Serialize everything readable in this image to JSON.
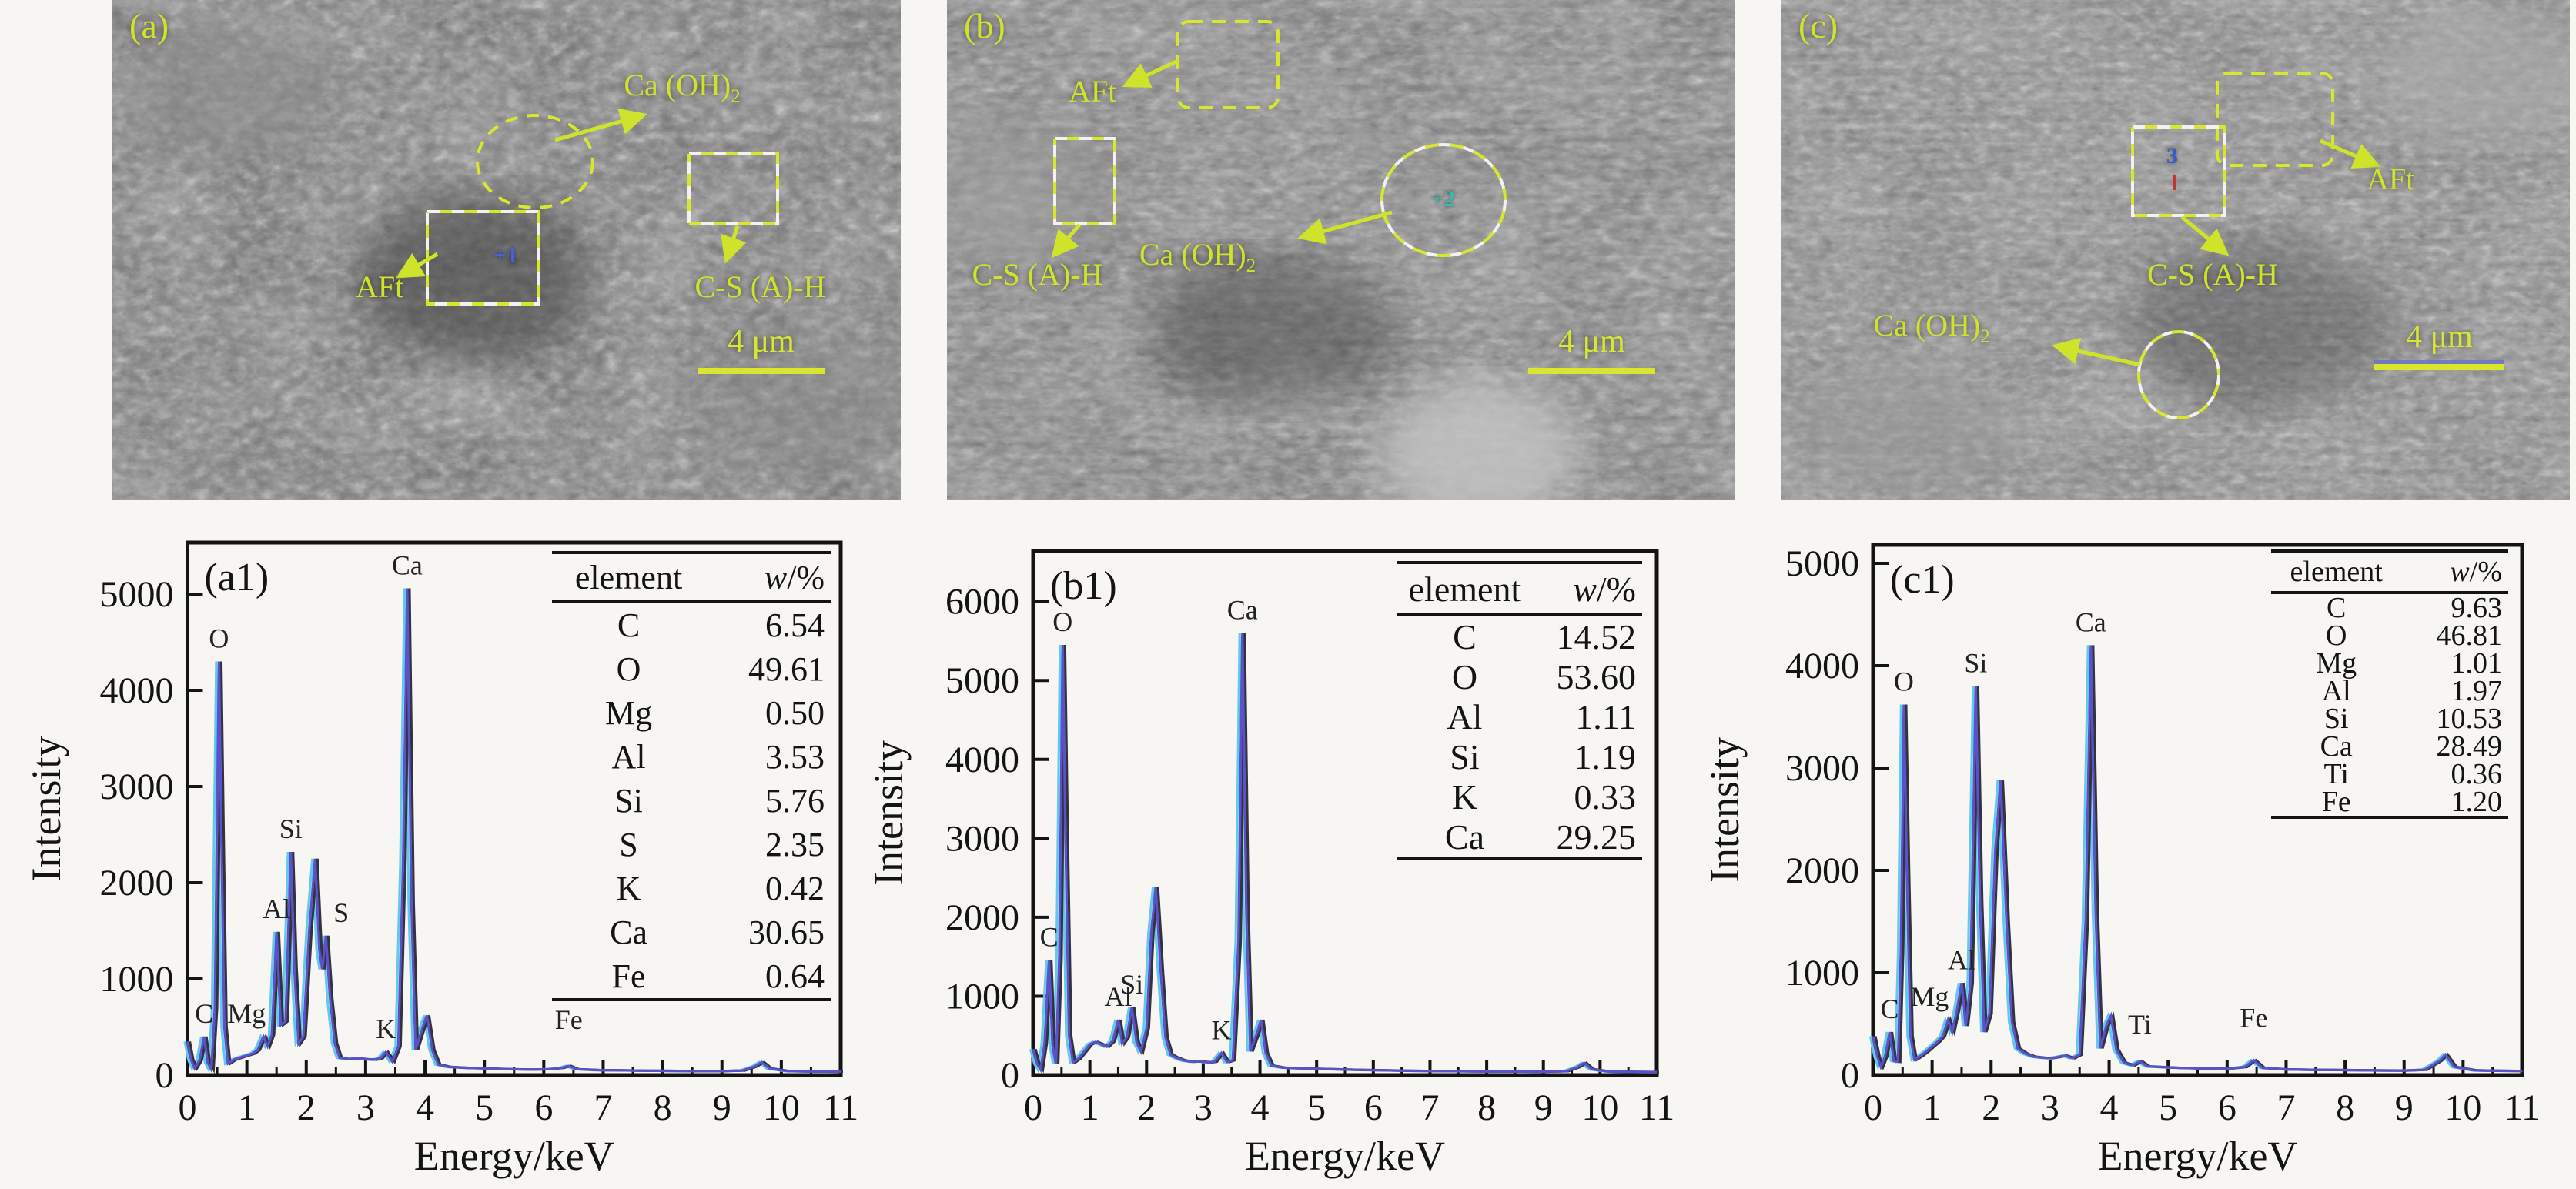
{
  "colors": {
    "annotation": "#cfe32b",
    "dash_yellow": "#d8e62e",
    "dash_white": "#f2f2f2",
    "marker_plus1": "#4b5fd6",
    "marker_plus2": "#37b9ae",
    "marker_3": "#3a57cc",
    "curve_dark": "#33333d",
    "curve_blue": "#5a52c8",
    "curve_cyan": "#63c8ec",
    "axis": "#141414",
    "sem_background": "#6e6e6e"
  },
  "sem_panels": [
    {
      "id": "a",
      "label": "(a)",
      "mineral_caoh": "Ca (OH)",
      "caoh_sub": "2",
      "mineral_aft": "AFt",
      "mineral_csah": "C-S (A)-H",
      "marker": "+1",
      "scale_label": "4 μm"
    },
    {
      "id": "b",
      "label": "(b)",
      "mineral_caoh": "Ca (OH)",
      "caoh_sub": "2",
      "mineral_aft": "AFt",
      "mineral_csah": "C-S (A)-H",
      "marker": "+2",
      "scale_label": "4 μm"
    },
    {
      "id": "c",
      "label": "(c)",
      "mineral_caoh": "Ca (OH)",
      "caoh_sub": "2",
      "mineral_aft": "AFt",
      "mineral_csah": "C-S (A)-H",
      "marker": "3",
      "scale_label": "4 μm"
    }
  ],
  "chart_data": [
    {
      "id": "a1",
      "type": "line",
      "panel_label": "(a1)",
      "xlabel": "Energy/keV",
      "ylabel": "Intensity",
      "xlim": [
        0,
        11
      ],
      "ylim": [
        0,
        5536
      ],
      "xticks": [
        0,
        1,
        2,
        3,
        4,
        5,
        6,
        7,
        8,
        9,
        10,
        11
      ],
      "yticks": [
        0,
        1000,
        2000,
        3000,
        4000,
        5000
      ],
      "grid": false,
      "legend_position": null,
      "peaks": [
        {
          "element": "C",
          "x": 0.28,
          "y": 400
        },
        {
          "element": "O",
          "x": 0.53,
          "y": 4300
        },
        {
          "element": "Mg",
          "x": 1.28,
          "y": 400,
          "dx": -22
        },
        {
          "element": "Al",
          "x": 1.5,
          "y": 1490
        },
        {
          "element": "Si",
          "x": 1.74,
          "y": 2320
        },
        {
          "element": "S",
          "x": 2.33,
          "y": 1450,
          "dx": 20
        },
        {
          "element": "K",
          "x": 3.34,
          "y": 240
        },
        {
          "element": "Ca",
          "x": 3.7,
          "y": 5060
        },
        {
          "element": "Fe",
          "x": 6.42,
          "y": 95,
          "dy": -30
        }
      ],
      "curve": [
        [
          0,
          350
        ],
        [
          0.06,
          160
        ],
        [
          0.12,
          70
        ],
        [
          0.2,
          150
        ],
        [
          0.28,
          400
        ],
        [
          0.34,
          130
        ],
        [
          0.4,
          60
        ],
        [
          0.46,
          700
        ],
        [
          0.5,
          2800
        ],
        [
          0.53,
          4300
        ],
        [
          0.57,
          2500
        ],
        [
          0.62,
          500
        ],
        [
          0.68,
          120
        ],
        [
          0.78,
          160
        ],
        [
          0.9,
          185
        ],
        [
          1.0,
          205
        ],
        [
          1.1,
          225
        ],
        [
          1.18,
          260
        ],
        [
          1.28,
          400
        ],
        [
          1.35,
          300
        ],
        [
          1.42,
          420
        ],
        [
          1.5,
          1490
        ],
        [
          1.57,
          520
        ],
        [
          1.65,
          560
        ],
        [
          1.74,
          2320
        ],
        [
          1.8,
          1100
        ],
        [
          1.87,
          330
        ],
        [
          1.95,
          400
        ],
        [
          2.05,
          1500
        ],
        [
          2.15,
          2250
        ],
        [
          2.22,
          1300
        ],
        [
          2.27,
          1100
        ],
        [
          2.33,
          1450
        ],
        [
          2.4,
          800
        ],
        [
          2.48,
          330
        ],
        [
          2.56,
          180
        ],
        [
          2.7,
          165
        ],
        [
          2.85,
          175
        ],
        [
          3.0,
          165
        ],
        [
          3.15,
          160
        ],
        [
          3.25,
          175
        ],
        [
          3.34,
          240
        ],
        [
          3.45,
          140
        ],
        [
          3.55,
          300
        ],
        [
          3.63,
          2200
        ],
        [
          3.7,
          5060
        ],
        [
          3.77,
          1800
        ],
        [
          3.84,
          260
        ],
        [
          3.95,
          480
        ],
        [
          4.03,
          620
        ],
        [
          4.12,
          260
        ],
        [
          4.22,
          110
        ],
        [
          4.4,
          85
        ],
        [
          4.7,
          75
        ],
        [
          5.0,
          70
        ],
        [
          5.4,
          62
        ],
        [
          5.8,
          58
        ],
        [
          6.1,
          62
        ],
        [
          6.3,
          75
        ],
        [
          6.42,
          95
        ],
        [
          6.55,
          62
        ],
        [
          6.9,
          52
        ],
        [
          7.3,
          50
        ],
        [
          7.7,
          46
        ],
        [
          8.1,
          44
        ],
        [
          8.5,
          42
        ],
        [
          9.0,
          42
        ],
        [
          9.35,
          48
        ],
        [
          9.55,
          90
        ],
        [
          9.67,
          135
        ],
        [
          9.8,
          70
        ],
        [
          10.1,
          42
        ],
        [
          10.5,
          38
        ],
        [
          11,
          36
        ]
      ],
      "table": {
        "header_element": "element",
        "header_w": "w/%",
        "rows": [
          [
            "C",
            "6.54"
          ],
          [
            "O",
            "49.61"
          ],
          [
            "Mg",
            "0.50"
          ],
          [
            "Al",
            "3.53"
          ],
          [
            "Si",
            "5.76"
          ],
          [
            "S",
            "2.35"
          ],
          [
            "K",
            "0.42"
          ],
          [
            "Ca",
            "30.65"
          ],
          [
            "Fe",
            "0.64"
          ]
        ]
      }
    },
    {
      "id": "b1",
      "type": "line",
      "panel_label": "(b1)",
      "xlabel": "Energy/keV",
      "ylabel": "Intensity",
      "xlim": [
        0,
        11
      ],
      "ylim": [
        0,
        6640
      ],
      "xticks": [
        0,
        1,
        2,
        3,
        4,
        5,
        6,
        7,
        8,
        9,
        10,
        11
      ],
      "yticks": [
        0,
        1000,
        2000,
        3000,
        4000,
        5000,
        6000
      ],
      "grid": false,
      "legend_position": null,
      "peaks": [
        {
          "element": "C",
          "x": 0.28,
          "y": 1460
        },
        {
          "element": "O",
          "x": 0.52,
          "y": 5450
        },
        {
          "element": "Al",
          "x": 1.5,
          "y": 700
        },
        {
          "element": "Si",
          "x": 1.74,
          "y": 860
        },
        {
          "element": "K",
          "x": 3.32,
          "y": 280
        },
        {
          "element": "Ca",
          "x": 3.69,
          "y": 5600
        }
      ],
      "curve": [
        [
          0,
          330
        ],
        [
          0.07,
          140
        ],
        [
          0.13,
          70
        ],
        [
          0.2,
          400
        ],
        [
          0.28,
          1460
        ],
        [
          0.34,
          380
        ],
        [
          0.4,
          140
        ],
        [
          0.46,
          1500
        ],
        [
          0.52,
          5450
        ],
        [
          0.57,
          3000
        ],
        [
          0.63,
          500
        ],
        [
          0.7,
          160
        ],
        [
          0.8,
          210
        ],
        [
          0.9,
          300
        ],
        [
          1.0,
          390
        ],
        [
          1.1,
          420
        ],
        [
          1.2,
          390
        ],
        [
          1.3,
          360
        ],
        [
          1.4,
          430
        ],
        [
          1.5,
          700
        ],
        [
          1.57,
          400
        ],
        [
          1.65,
          480
        ],
        [
          1.74,
          860
        ],
        [
          1.82,
          420
        ],
        [
          1.9,
          300
        ],
        [
          2.0,
          600
        ],
        [
          2.08,
          1800
        ],
        [
          2.16,
          2380
        ],
        [
          2.25,
          1300
        ],
        [
          2.33,
          480
        ],
        [
          2.42,
          260
        ],
        [
          2.52,
          220
        ],
        [
          2.65,
          185
        ],
        [
          2.8,
          170
        ],
        [
          2.95,
          175
        ],
        [
          3.1,
          160
        ],
        [
          3.2,
          170
        ],
        [
          3.32,
          280
        ],
        [
          3.42,
          165
        ],
        [
          3.52,
          190
        ],
        [
          3.62,
          1700
        ],
        [
          3.69,
          5600
        ],
        [
          3.76,
          2000
        ],
        [
          3.83,
          300
        ],
        [
          3.94,
          520
        ],
        [
          4.02,
          700
        ],
        [
          4.1,
          280
        ],
        [
          4.2,
          120
        ],
        [
          4.4,
          95
        ],
        [
          4.7,
          85
        ],
        [
          5.0,
          80
        ],
        [
          5.4,
          72
        ],
        [
          5.8,
          65
        ],
        [
          6.2,
          60
        ],
        [
          6.6,
          55
        ],
        [
          7.0,
          52
        ],
        [
          7.4,
          50
        ],
        [
          7.8,
          48
        ],
        [
          8.2,
          46
        ],
        [
          8.6,
          45
        ],
        [
          9.0,
          44
        ],
        [
          9.4,
          50
        ],
        [
          9.6,
          100
        ],
        [
          9.72,
          155
        ],
        [
          9.85,
          75
        ],
        [
          10.15,
          45
        ],
        [
          10.6,
          40
        ],
        [
          11,
          38
        ]
      ],
      "table": {
        "header_element": "element",
        "header_w": "w/%",
        "rows": [
          [
            "C",
            "14.52"
          ],
          [
            "O",
            "53.60"
          ],
          [
            "Al",
            "1.11"
          ],
          [
            "Si",
            "1.19"
          ],
          [
            "K",
            "0.33"
          ],
          [
            "Ca",
            "29.25"
          ]
        ]
      }
    },
    {
      "id": "c1",
      "type": "line",
      "panel_label": "(c1)",
      "xlabel": "Energy/keV",
      "ylabel": "Intensity",
      "xlim": [
        0,
        11
      ],
      "ylim": [
        0,
        5180
      ],
      "xticks": [
        0,
        1,
        2,
        3,
        4,
        5,
        6,
        7,
        8,
        9,
        10,
        11
      ],
      "yticks": [
        0,
        1000,
        2000,
        3000,
        4000,
        5000
      ],
      "grid": false,
      "legend_position": null,
      "peaks": [
        {
          "element": "C",
          "x": 0.28,
          "y": 420
        },
        {
          "element": "O",
          "x": 0.52,
          "y": 3620
        },
        {
          "element": "Mg",
          "x": 1.27,
          "y": 540,
          "dx": -24
        },
        {
          "element": "Al",
          "x": 1.5,
          "y": 900
        },
        {
          "element": "Si",
          "x": 1.74,
          "y": 3800
        },
        {
          "element": "Ca",
          "x": 3.69,
          "y": 4200
        },
        {
          "element": "Ti",
          "x": 4.52,
          "y": 135,
          "dy": -18
        },
        {
          "element": "Fe",
          "x": 6.45,
          "y": 145,
          "dy": -25
        }
      ],
      "curve": [
        [
          0,
          380
        ],
        [
          0.07,
          180
        ],
        [
          0.13,
          80
        ],
        [
          0.2,
          180
        ],
        [
          0.28,
          420
        ],
        [
          0.35,
          140
        ],
        [
          0.42,
          130
        ],
        [
          0.47,
          1200
        ],
        [
          0.52,
          3620
        ],
        [
          0.57,
          2000
        ],
        [
          0.63,
          380
        ],
        [
          0.7,
          150
        ],
        [
          0.8,
          185
        ],
        [
          0.9,
          230
        ],
        [
          1.0,
          280
        ],
        [
          1.1,
          330
        ],
        [
          1.18,
          380
        ],
        [
          1.27,
          540
        ],
        [
          1.34,
          420
        ],
        [
          1.42,
          640
        ],
        [
          1.5,
          900
        ],
        [
          1.57,
          480
        ],
        [
          1.65,
          900
        ],
        [
          1.74,
          3800
        ],
        [
          1.81,
          1700
        ],
        [
          1.88,
          420
        ],
        [
          1.97,
          600
        ],
        [
          2.07,
          2200
        ],
        [
          2.16,
          2880
        ],
        [
          2.26,
          1500
        ],
        [
          2.35,
          520
        ],
        [
          2.45,
          260
        ],
        [
          2.58,
          210
        ],
        [
          2.72,
          180
        ],
        [
          2.87,
          170
        ],
        [
          3.0,
          165
        ],
        [
          3.12,
          175
        ],
        [
          3.25,
          190
        ],
        [
          3.38,
          165
        ],
        [
          3.5,
          200
        ],
        [
          3.6,
          1500
        ],
        [
          3.69,
          4200
        ],
        [
          3.77,
          1600
        ],
        [
          3.85,
          260
        ],
        [
          3.95,
          480
        ],
        [
          4.03,
          580
        ],
        [
          4.12,
          250
        ],
        [
          4.25,
          120
        ],
        [
          4.4,
          95
        ],
        [
          4.52,
          135
        ],
        [
          4.65,
          85
        ],
        [
          4.9,
          78
        ],
        [
          5.2,
          70
        ],
        [
          5.6,
          65
        ],
        [
          6.0,
          62
        ],
        [
          6.3,
          80
        ],
        [
          6.45,
          145
        ],
        [
          6.6,
          70
        ],
        [
          7.0,
          56
        ],
        [
          7.4,
          52
        ],
        [
          7.8,
          50
        ],
        [
          8.2,
          47
        ],
        [
          8.6,
          45
        ],
        [
          9.0,
          44
        ],
        [
          9.35,
          52
        ],
        [
          9.6,
          140
        ],
        [
          9.7,
          200
        ],
        [
          9.85,
          80
        ],
        [
          10.2,
          46
        ],
        [
          10.6,
          42
        ],
        [
          11,
          40
        ]
      ],
      "table": {
        "header_element": "element",
        "header_w": "w/%",
        "rows": [
          [
            "C",
            "9.63"
          ],
          [
            "O",
            "46.81"
          ],
          [
            "Mg",
            "1.01"
          ],
          [
            "Al",
            "1.97"
          ],
          [
            "Si",
            "10.53"
          ],
          [
            "Ca",
            "28.49"
          ],
          [
            "Ti",
            "0.36"
          ],
          [
            "Fe",
            "1.20"
          ]
        ]
      }
    }
  ]
}
